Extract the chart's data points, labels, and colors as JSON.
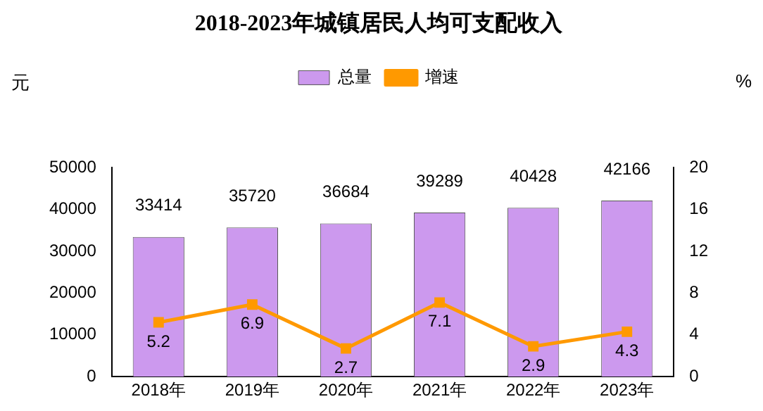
{
  "chart_data": {
    "type": "bar",
    "title": "2018-2023年城镇居民人均可支配收入",
    "ylabel": "元",
    "y2label": "%",
    "categories": [
      "2018年",
      "2019年",
      "2020年",
      "2021年",
      "2022年",
      "2023年"
    ],
    "series": [
      {
        "name": "总量",
        "color": "#cc99ee",
        "values": [
          33414,
          35720,
          36684,
          39289,
          40428,
          42166
        ]
      },
      {
        "name": "增速",
        "type": "line",
        "axis": "y2",
        "color": "#ff9900",
        "values": [
          5.2,
          6.9,
          2.7,
          7.1,
          2.9,
          4.3
        ]
      }
    ],
    "ylim": [
      0,
      50000
    ],
    "yticks": [
      0,
      10000,
      20000,
      30000,
      40000,
      50000
    ],
    "y2lim": [
      0,
      20
    ],
    "y2ticks": [
      0,
      4,
      8,
      12,
      16,
      20
    ],
    "data_labels": true,
    "legend": "top",
    "grid": false,
    "marker": "square"
  }
}
